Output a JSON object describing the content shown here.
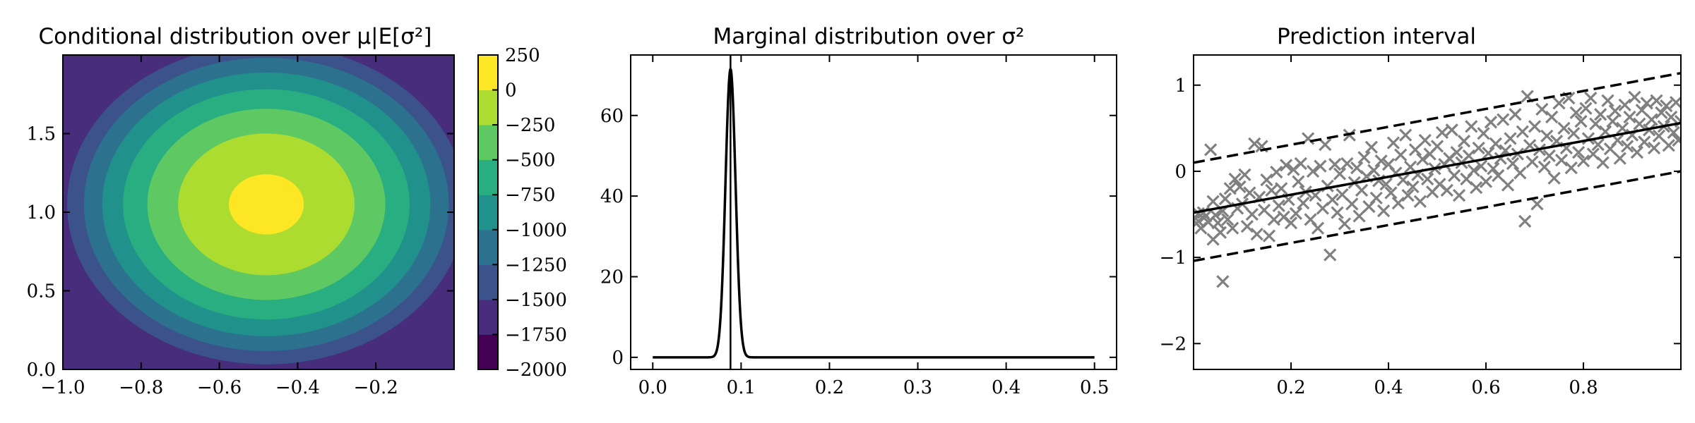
{
  "chart_data": [
    {
      "type": "contour",
      "title": "Conditional distribution over μ|E[σ²]",
      "x_range": [
        -1.0,
        0.0
      ],
      "y_range": [
        0.0,
        2.0
      ],
      "x_ticks": [
        -1.0,
        -0.8,
        -0.6,
        -0.4,
        -0.2
      ],
      "x_tick_labels": [
        "−1.0",
        "−0.8",
        "−0.6",
        "−0.4",
        "−0.2"
      ],
      "y_ticks": [
        0.0,
        0.5,
        1.0,
        1.5
      ],
      "y_tick_labels": [
        "0.0",
        "0.5",
        "1.0",
        "1.5"
      ],
      "center": {
        "x": -0.48,
        "y": 1.05
      },
      "levels": [
        -2000,
        -1750,
        -1500,
        -1250,
        -1000,
        -750,
        -500,
        -250,
        0,
        250
      ],
      "colorbar_tick_labels": [
        "250",
        "0",
        "−250",
        "−500",
        "−750",
        "−1000",
        "−1250",
        "−1500",
        "−1750",
        "−2000"
      ],
      "colormap": [
        "#440154",
        "#472d7b",
        "#3b528b",
        "#2c728e",
        "#21918c",
        "#28ae80",
        "#5ec962",
        "#addc30",
        "#fde725"
      ]
    },
    {
      "type": "line",
      "title": "Marginal distribution over σ²",
      "x_range": [
        -0.025,
        0.525
      ],
      "y_range": [
        -3,
        75
      ],
      "x_ticks": [
        0.0,
        0.1,
        0.2,
        0.3,
        0.4,
        0.5
      ],
      "x_tick_labels": [
        "0.0",
        "0.1",
        "0.2",
        "0.3",
        "0.4",
        "0.5"
      ],
      "y_ticks": [
        0,
        20,
        40,
        60
      ],
      "y_tick_labels": [
        "0",
        "20",
        "40",
        "60"
      ],
      "curve": {
        "shape": "gaussian",
        "x_min": 0.0,
        "x_max": 0.5,
        "peak_x": 0.088,
        "peak_y": 71.5,
        "width": 0.0057
      },
      "vline_x": 0.088,
      "line_color": "#000000"
    },
    {
      "type": "scatter",
      "title": "Prediction interval",
      "x_range": [
        0.0,
        1.0
      ],
      "y_range": [
        -2.3,
        1.35
      ],
      "x_ticks": [
        0.2,
        0.4,
        0.6,
        0.8
      ],
      "x_tick_labels": [
        "0.2",
        "0.4",
        "0.6",
        "0.8"
      ],
      "y_ticks": [
        -2,
        -1,
        0,
        1
      ],
      "y_tick_labels": [
        "−2",
        "−1",
        "0",
        "1"
      ],
      "mean_line": {
        "x": [
          0.0,
          1.0
        ],
        "y": [
          -0.48,
          0.56
        ]
      },
      "upper_bound": {
        "x": [
          0.0,
          1.0
        ],
        "y": [
          0.1,
          1.14
        ]
      },
      "lower_bound": {
        "x": [
          0.0,
          1.0
        ],
        "y": [
          -1.04,
          0.0
        ]
      },
      "marker_color": "#808080",
      "points": [
        [
          0.0,
          -0.57
        ],
        [
          0.01,
          -0.49
        ],
        [
          0.01,
          -0.58
        ],
        [
          0.015,
          -0.66
        ],
        [
          0.02,
          -0.48
        ],
        [
          0.025,
          -0.52
        ],
        [
          0.03,
          -0.59
        ],
        [
          0.035,
          0.25
        ],
        [
          0.04,
          -0.35
        ],
        [
          0.04,
          -0.79
        ],
        [
          0.045,
          -0.51
        ],
        [
          0.05,
          -0.6
        ],
        [
          0.055,
          -0.71
        ],
        [
          0.06,
          -1.28
        ],
        [
          0.06,
          -0.46
        ],
        [
          0.065,
          -0.32
        ],
        [
          0.07,
          -0.56
        ],
        [
          0.075,
          -0.2
        ],
        [
          0.08,
          -0.66
        ],
        [
          0.085,
          -0.09
        ],
        [
          0.09,
          -0.43
        ],
        [
          0.095,
          -0.18
        ],
        [
          0.1,
          -0.38
        ],
        [
          0.105,
          -0.04
        ],
        [
          0.11,
          -0.64
        ],
        [
          0.115,
          -0.25
        ],
        [
          0.12,
          -0.5
        ],
        [
          0.125,
          0.32
        ],
        [
          0.13,
          -0.73
        ],
        [
          0.135,
          -0.3
        ],
        [
          0.14,
          0.29
        ],
        [
          0.145,
          -0.45
        ],
        [
          0.15,
          -0.1
        ],
        [
          0.155,
          -0.75
        ],
        [
          0.16,
          -0.22
        ],
        [
          0.165,
          -0.56
        ],
        [
          0.17,
          -0.01
        ],
        [
          0.175,
          -0.4
        ],
        [
          0.18,
          -0.2
        ],
        [
          0.185,
          -0.53
        ],
        [
          0.19,
          0.07
        ],
        [
          0.195,
          -0.33
        ],
        [
          0.2,
          -0.6
        ],
        [
          0.205,
          0.02
        ],
        [
          0.21,
          -0.49
        ],
        [
          0.215,
          -0.12
        ],
        [
          0.22,
          0.09
        ],
        [
          0.225,
          -0.37
        ],
        [
          0.23,
          -0.24
        ],
        [
          0.235,
          0.38
        ],
        [
          0.24,
          -0.56
        ],
        [
          0.245,
          0.0
        ],
        [
          0.25,
          -0.28
        ],
        [
          0.255,
          -0.66
        ],
        [
          0.26,
          0.06
        ],
        [
          0.265,
          -0.43
        ],
        [
          0.27,
          0.31
        ],
        [
          0.275,
          -0.17
        ],
        [
          0.28,
          -0.97
        ],
        [
          0.285,
          -0.33
        ],
        [
          0.29,
          0.08
        ],
        [
          0.295,
          -0.48
        ],
        [
          0.3,
          -0.03
        ],
        [
          0.305,
          -0.27
        ],
        [
          0.31,
          -0.61
        ],
        [
          0.315,
          0.09
        ],
        [
          0.32,
          0.42
        ],
        [
          0.325,
          -0.38
        ],
        [
          0.33,
          -0.13
        ],
        [
          0.335,
          0.04
        ],
        [
          0.34,
          -0.52
        ],
        [
          0.345,
          -0.22
        ],
        [
          0.35,
          0.16
        ],
        [
          0.355,
          -0.06
        ],
        [
          0.36,
          -0.41
        ],
        [
          0.365,
          0.28
        ],
        [
          0.37,
          0.01
        ],
        [
          0.375,
          -0.31
        ],
        [
          0.38,
          -0.11
        ],
        [
          0.385,
          0.12
        ],
        [
          0.39,
          -0.46
        ],
        [
          0.395,
          -0.15
        ],
        [
          0.4,
          0.08
        ],
        [
          0.405,
          -0.25
        ],
        [
          0.41,
          0.33
        ],
        [
          0.415,
          -0.02
        ],
        [
          0.42,
          -0.37
        ],
        [
          0.425,
          0.19
        ],
        [
          0.43,
          -0.1
        ],
        [
          0.435,
          0.42
        ],
        [
          0.44,
          -0.28
        ],
        [
          0.445,
          0.05
        ],
        [
          0.45,
          -0.18
        ],
        [
          0.455,
          0.25
        ],
        [
          0.46,
          -0.04
        ],
        [
          0.465,
          -0.35
        ],
        [
          0.47,
          0.14
        ],
        [
          0.475,
          0.36
        ],
        [
          0.48,
          -0.09
        ],
        [
          0.485,
          0.2
        ],
        [
          0.49,
          -0.24
        ],
        [
          0.495,
          0.03
        ],
        [
          0.5,
          0.29
        ],
        [
          0.505,
          -0.15
        ],
        [
          0.51,
          0.45
        ],
        [
          0.515,
          0.08
        ],
        [
          0.52,
          -0.22
        ],
        [
          0.525,
          0.15
        ],
        [
          0.53,
          0.48
        ],
        [
          0.535,
          -0.05
        ],
        [
          0.54,
          0.22
        ],
        [
          0.545,
          -0.28
        ],
        [
          0.55,
          0.1
        ],
        [
          0.555,
          0.35
        ],
        [
          0.56,
          -0.09
        ],
        [
          0.565,
          0.18
        ],
        [
          0.57,
          0.52
        ],
        [
          0.575,
          0.01
        ],
        [
          0.58,
          -0.19
        ],
        [
          0.585,
          0.27
        ],
        [
          0.59,
          0.06
        ],
        [
          0.595,
          0.44
        ],
        [
          0.6,
          -0.12
        ],
        [
          0.605,
          0.21
        ],
        [
          0.61,
          0.57
        ],
        [
          0.615,
          0.03
        ],
        [
          0.62,
          0.32
        ],
        [
          0.625,
          -0.05
        ],
        [
          0.63,
          0.15
        ],
        [
          0.635,
          0.6
        ],
        [
          0.64,
          0.24
        ],
        [
          0.645,
          -0.16
        ],
        [
          0.65,
          0.38
        ],
        [
          0.655,
          0.09
        ],
        [
          0.66,
          0.66
        ],
        [
          0.665,
          0.2
        ],
        [
          0.67,
          -0.02
        ],
        [
          0.675,
          0.46
        ],
        [
          0.68,
          -0.58
        ],
        [
          0.685,
          0.87
        ],
        [
          0.69,
          0.3
        ],
        [
          0.695,
          0.11
        ],
        [
          0.7,
          0.52
        ],
        [
          0.705,
          -0.38
        ],
        [
          0.71,
          0.25
        ],
        [
          0.715,
          0.72
        ],
        [
          0.72,
          0.05
        ],
        [
          0.725,
          0.41
        ],
        [
          0.73,
          0.18
        ],
        [
          0.735,
          0.63
        ],
        [
          0.74,
          -0.08
        ],
        [
          0.745,
          0.35
        ],
        [
          0.75,
          0.79
        ],
        [
          0.755,
          0.13
        ],
        [
          0.76,
          0.5
        ],
        [
          0.765,
          0.27
        ],
        [
          0.77,
          0.85
        ],
        [
          0.775,
          0.04
        ],
        [
          0.78,
          0.44
        ],
        [
          0.785,
          0.68
        ],
        [
          0.79,
          0.22
        ],
        [
          0.795,
          0.58
        ],
        [
          0.8,
          0.12
        ],
        [
          0.805,
          0.73
        ],
        [
          0.81,
          0.38
        ],
        [
          0.815,
          0.85
        ],
        [
          0.82,
          0.2
        ],
        [
          0.825,
          0.55
        ],
        [
          0.83,
          0.31
        ],
        [
          0.835,
          0.66
        ],
        [
          0.84,
          0.1
        ],
        [
          0.845,
          0.46
        ],
        [
          0.85,
          0.82
        ],
        [
          0.855,
          0.26
        ],
        [
          0.86,
          0.58
        ],
        [
          0.865,
          0.7
        ],
        [
          0.87,
          0.36
        ],
        [
          0.875,
          0.15
        ],
        [
          0.88,
          0.5
        ],
        [
          0.885,
          0.77
        ],
        [
          0.89,
          0.29
        ],
        [
          0.895,
          0.63
        ],
        [
          0.9,
          0.42
        ],
        [
          0.905,
          0.86
        ],
        [
          0.91,
          0.22
        ],
        [
          0.915,
          0.55
        ],
        [
          0.92,
          0.71
        ],
        [
          0.925,
          0.34
        ],
        [
          0.93,
          0.79
        ],
        [
          0.935,
          0.48
        ],
        [
          0.94,
          0.6
        ],
        [
          0.945,
          0.27
        ],
        [
          0.95,
          0.82
        ],
        [
          0.955,
          0.41
        ],
        [
          0.96,
          0.68
        ],
        [
          0.965,
          0.52
        ],
        [
          0.97,
          0.76
        ],
        [
          0.975,
          0.3
        ],
        [
          0.98,
          0.63
        ],
        [
          0.985,
          0.45
        ],
        [
          0.99,
          0.8
        ],
        [
          0.995,
          0.36
        ],
        [
          1.0,
          0.58
        ]
      ]
    }
  ]
}
